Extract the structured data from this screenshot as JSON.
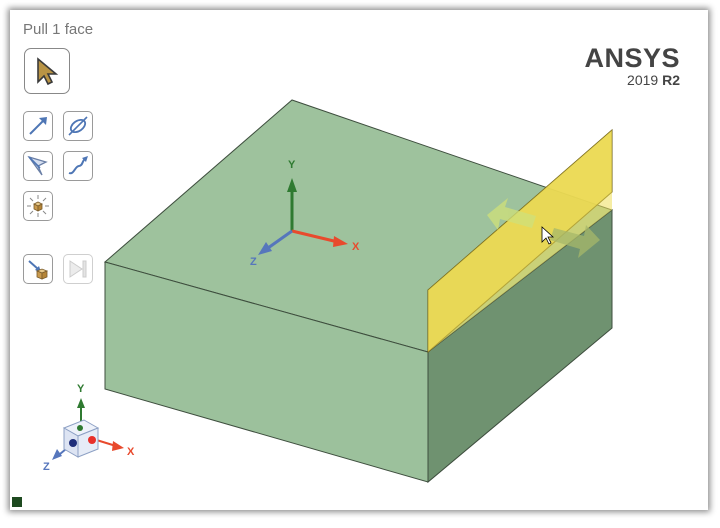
{
  "viewport": {
    "mode_label": "Pull 1 face",
    "brand": {
      "name": "ANSYS",
      "version_year": "2019",
      "version_release": "R2"
    }
  },
  "toolbar": {
    "tools": [
      {
        "icon": "select-arrow-icon",
        "state": "active"
      },
      {
        "icon": "direction-arrow-icon",
        "state": "enabled"
      },
      {
        "icon": "revolve-axis-icon",
        "state": "enabled"
      },
      {
        "icon": "up-to-icon",
        "state": "enabled"
      },
      {
        "icon": "sweep-trajectory-icon",
        "state": "enabled"
      },
      {
        "icon": "full-pull-icon",
        "state": "enabled"
      },
      {
        "icon": "pull-options-icon",
        "state": "enabled"
      },
      {
        "icon": "complete-icon",
        "state": "disabled"
      }
    ]
  },
  "triad": {
    "x_label": "X",
    "y_label": "Y",
    "z_label": "Z"
  },
  "colors": {
    "top_face": "#9ec29d",
    "front_face": "#9cc19c",
    "right_face": "#6f9270",
    "selected_face": "#e5d34a",
    "x_axis": "#e84a2d",
    "y_axis": "#2f7a31",
    "z_axis": "#5676bc"
  }
}
